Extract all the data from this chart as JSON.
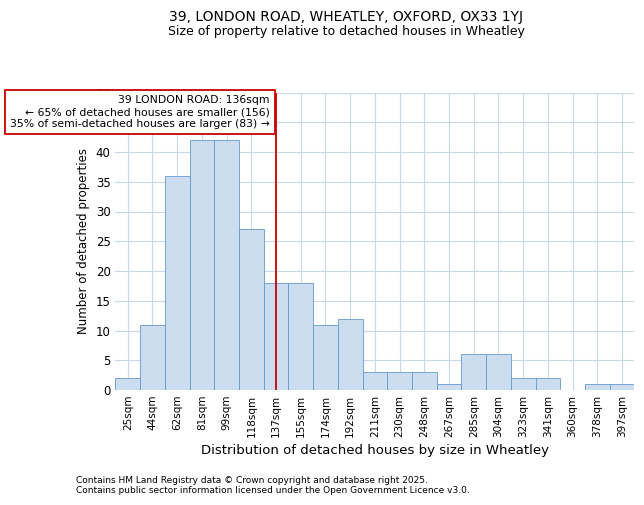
{
  "title_line1": "39, LONDON ROAD, WHEATLEY, OXFORD, OX33 1YJ",
  "title_line2": "Size of property relative to detached houses in Wheatley",
  "xlabel": "Distribution of detached houses by size in Wheatley",
  "ylabel": "Number of detached properties",
  "footer": "Contains HM Land Registry data © Crown copyright and database right 2025.\nContains public sector information licensed under the Open Government Licence v3.0.",
  "categories": [
    "25sqm",
    "44sqm",
    "62sqm",
    "81sqm",
    "99sqm",
    "118sqm",
    "137sqm",
    "155sqm",
    "174sqm",
    "192sqm",
    "211sqm",
    "230sqm",
    "248sqm",
    "267sqm",
    "285sqm",
    "304sqm",
    "323sqm",
    "341sqm",
    "360sqm",
    "378sqm",
    "397sqm"
  ],
  "values": [
    2,
    11,
    36,
    42,
    42,
    27,
    18,
    18,
    11,
    12,
    3,
    3,
    3,
    1,
    6,
    6,
    2,
    2,
    0,
    1,
    1
  ],
  "bar_color": "#ccddf0",
  "bar_edge_color": "#6699cc",
  "grid_color": "#c8d8e8",
  "background_color": "#ffffff",
  "annotation_text": "39 LONDON ROAD: 136sqm\n← 65% of detached houses are smaller (156)\n35% of semi-detached houses are larger (83) →",
  "vline_x": 6.0,
  "ylim": [
    0,
    50
  ],
  "yticks": [
    0,
    5,
    10,
    15,
    20,
    25,
    30,
    35,
    40,
    45,
    50
  ]
}
